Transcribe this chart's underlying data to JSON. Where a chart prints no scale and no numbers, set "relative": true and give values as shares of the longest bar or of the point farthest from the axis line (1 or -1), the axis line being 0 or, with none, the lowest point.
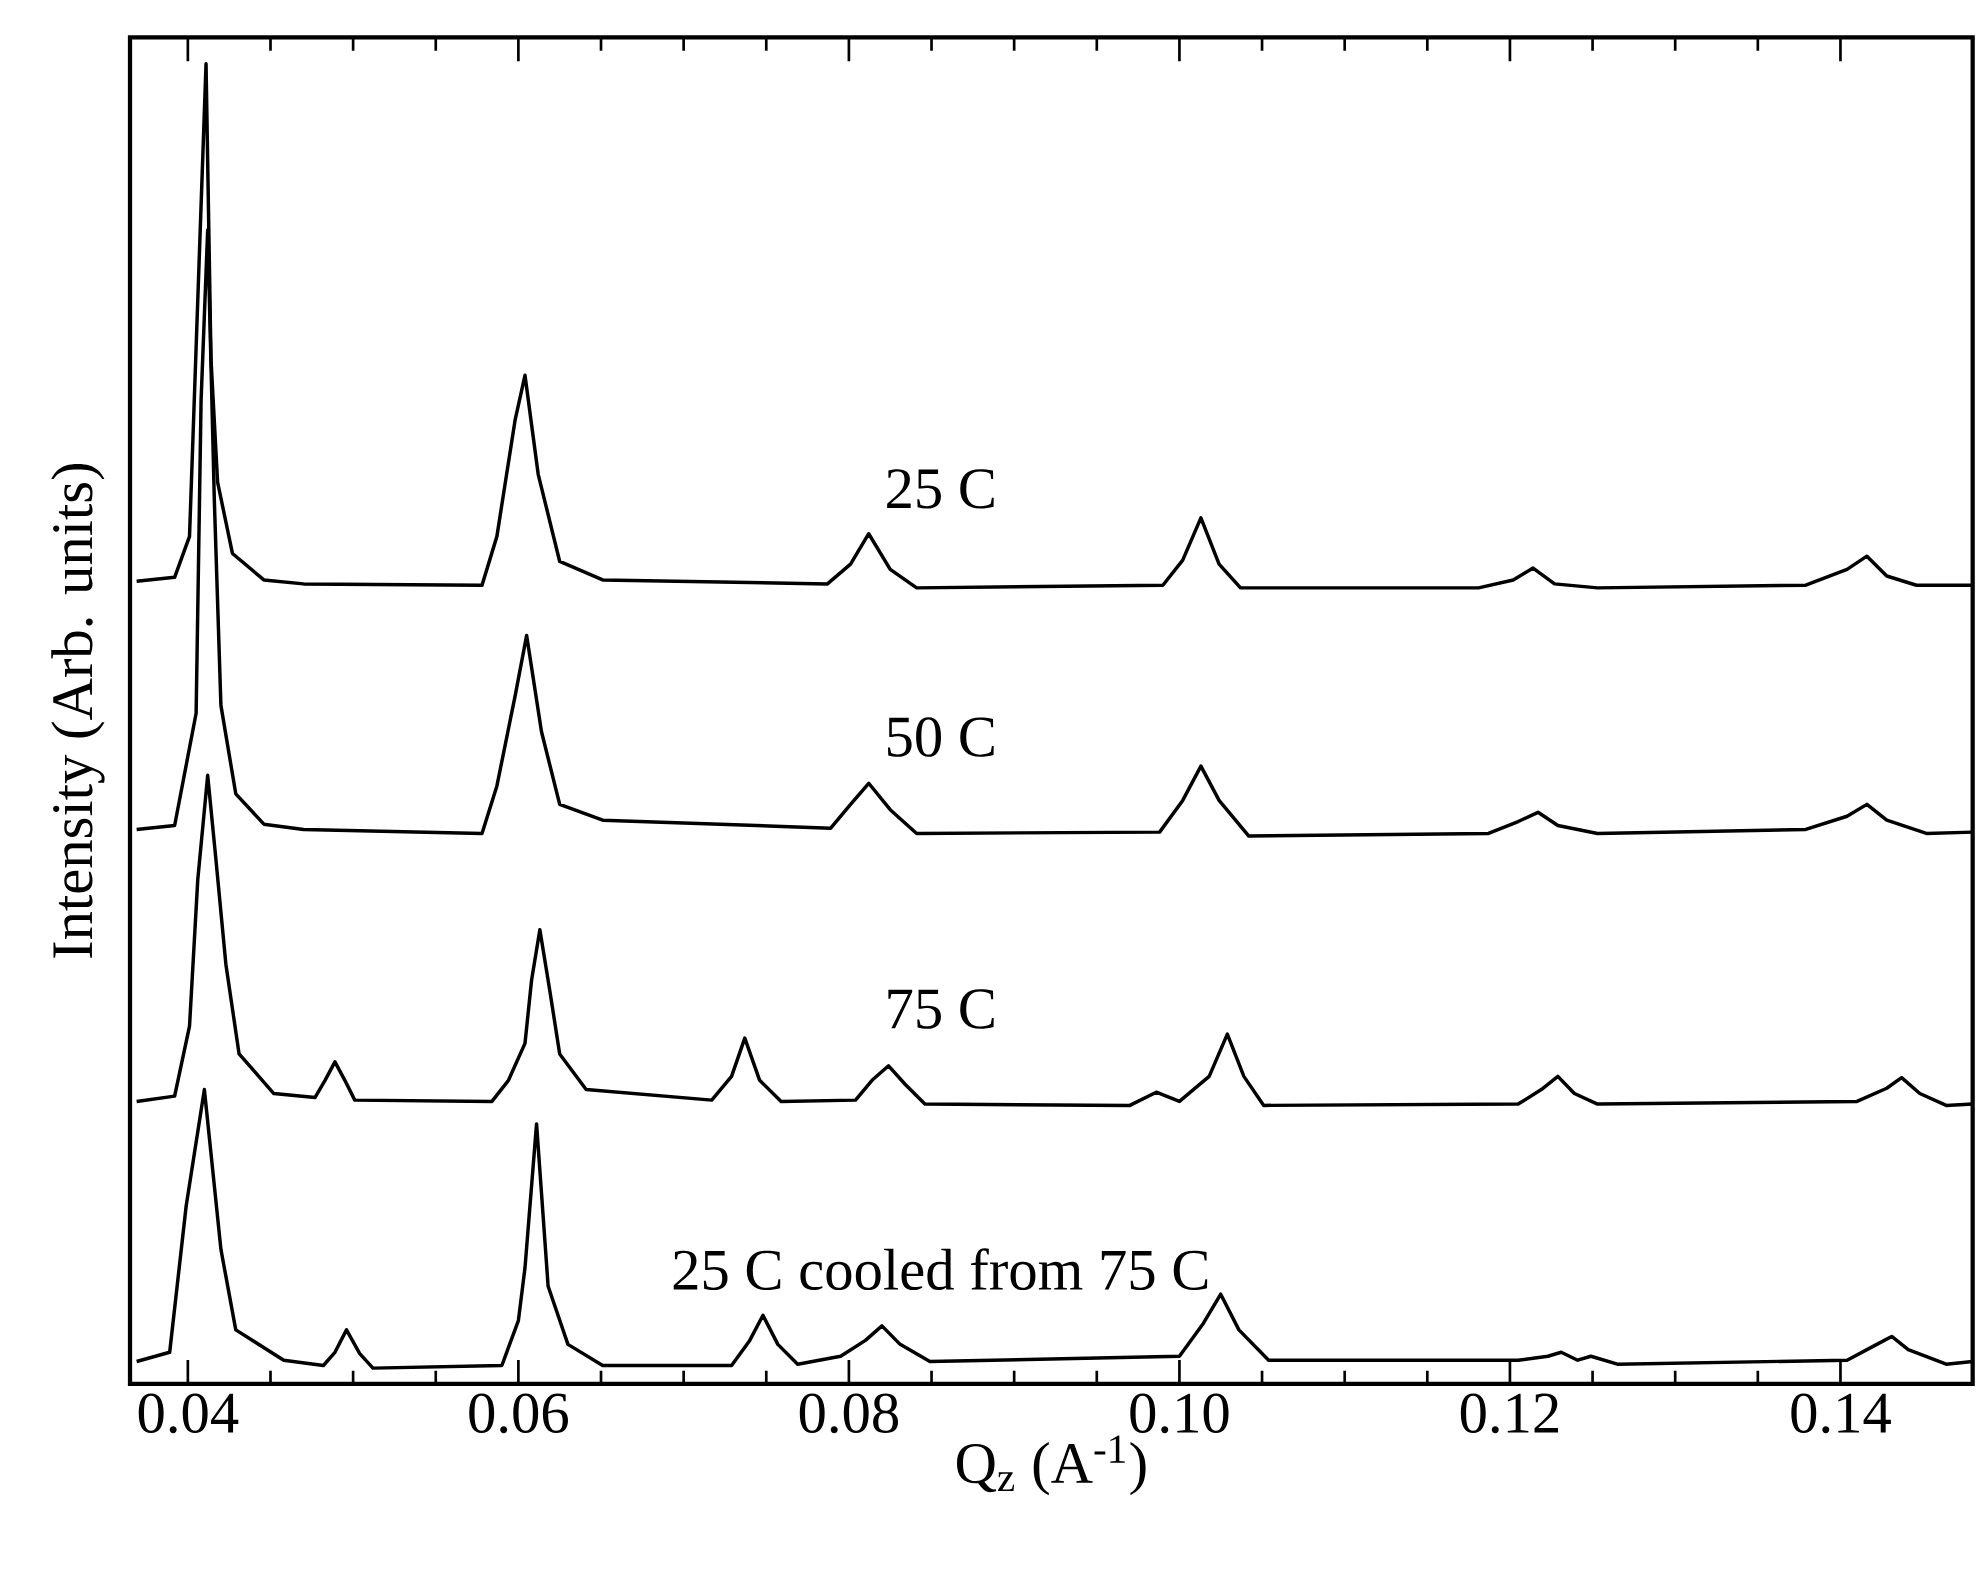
{
  "chart_data": {
    "type": "line",
    "relative": true,
    "xlabel": "Q$_{z}$ (A$^{-1}$)",
    "ylabel": "Intensity (Arb. units)",
    "xlim": [
      0.0365,
      0.148
    ],
    "xticks": [
      {
        "value": 0.04,
        "label": "0.04"
      },
      {
        "value": 0.06,
        "label": "0.06"
      },
      {
        "value": 0.08,
        "label": "0.08"
      },
      {
        "value": 0.1,
        "label": "0.10"
      },
      {
        "value": 0.12,
        "label": "0.12"
      },
      {
        "value": 0.14,
        "label": "0.14"
      }
    ],
    "legend": false,
    "marker": "none",
    "line_style": "solid",
    "series": [
      {
        "name": "25 C",
        "color": "#000000",
        "x": [
          0.0369,
          0.0392,
          0.0401,
          0.0406,
          0.0411,
          0.0414,
          0.0418,
          0.0427,
          0.0446,
          0.047,
          0.0578,
          0.0587,
          0.0598,
          0.0604,
          0.0612,
          0.0625,
          0.0651,
          0.0787,
          0.0801,
          0.0812,
          0.0825,
          0.0841,
          0.099,
          0.1002,
          0.1013,
          0.1024,
          0.1037,
          0.1181,
          0.1202,
          0.1214,
          0.1227,
          0.1253,
          0.1379,
          0.1404,
          0.1416,
          0.1428,
          0.1446,
          0.148
        ],
        "values": [
          0.608,
          0.611,
          0.642,
          0.821,
          1.0,
          0.776,
          0.683,
          0.629,
          0.609,
          0.606,
          0.605,
          0.642,
          0.73,
          0.764,
          0.689,
          0.623,
          0.609,
          0.606,
          0.621,
          0.644,
          0.617,
          0.603,
          0.605,
          0.624,
          0.656,
          0.621,
          0.603,
          0.603,
          0.609,
          0.618,
          0.606,
          0.603,
          0.605,
          0.617,
          0.627,
          0.612,
          0.605,
          0.605
        ]
      },
      {
        "name": "50 C",
        "color": "#000000",
        "x": [
          0.0369,
          0.0392,
          0.0405,
          0.0408,
          0.0412,
          0.0416,
          0.042,
          0.0429,
          0.0446,
          0.047,
          0.0578,
          0.0587,
          0.0598,
          0.0605,
          0.0614,
          0.0625,
          0.0651,
          0.0789,
          0.0801,
          0.0812,
          0.0825,
          0.0841,
          0.0988,
          0.1002,
          0.1013,
          0.1024,
          0.1042,
          0.1187,
          0.1205,
          0.1217,
          0.1229,
          0.1253,
          0.1379,
          0.1404,
          0.1416,
          0.1428,
          0.1452,
          0.148
        ],
        "values": [
          0.42,
          0.423,
          0.508,
          0.745,
          0.874,
          0.67,
          0.514,
          0.447,
          0.424,
          0.42,
          0.417,
          0.453,
          0.521,
          0.567,
          0.494,
          0.439,
          0.427,
          0.421,
          0.439,
          0.455,
          0.435,
          0.417,
          0.418,
          0.442,
          0.468,
          0.442,
          0.415,
          0.417,
          0.426,
          0.433,
          0.423,
          0.417,
          0.42,
          0.43,
          0.439,
          0.427,
          0.417,
          0.418
        ]
      },
      {
        "name": "75 C",
        "color": "#000000",
        "x": [
          0.0369,
          0.0392,
          0.0401,
          0.0406,
          0.0412,
          0.0417,
          0.0423,
          0.0431,
          0.0452,
          0.0477,
          0.0483,
          0.0489,
          0.0495,
          0.0501,
          0.0584,
          0.0594,
          0.0604,
          0.0608,
          0.0613,
          0.0619,
          0.0625,
          0.0641,
          0.0717,
          0.0729,
          0.0737,
          0.0746,
          0.0759,
          0.0804,
          0.0814,
          0.0824,
          0.0834,
          0.0846,
          0.097,
          0.0986,
          0.1,
          0.1018,
          0.1029,
          0.1039,
          0.1051,
          0.1205,
          0.1219,
          0.1229,
          0.1239,
          0.1253,
          0.141,
          0.1428,
          0.1437,
          0.1448,
          0.1464,
          0.148
        ],
        "values": [
          0.214,
          0.218,
          0.271,
          0.382,
          0.461,
          0.397,
          0.318,
          0.25,
          0.22,
          0.217,
          0.23,
          0.244,
          0.23,
          0.215,
          0.214,
          0.23,
          0.258,
          0.306,
          0.344,
          0.298,
          0.25,
          0.223,
          0.215,
          0.233,
          0.262,
          0.23,
          0.214,
          0.215,
          0.23,
          0.241,
          0.227,
          0.212,
          0.211,
          0.221,
          0.214,
          0.233,
          0.265,
          0.233,
          0.211,
          0.212,
          0.223,
          0.233,
          0.22,
          0.212,
          0.214,
          0.224,
          0.232,
          0.22,
          0.211,
          0.212
        ]
      },
      {
        "name": "25 C cooled from 75 C",
        "color": "#000000",
        "x": [
          0.0369,
          0.0389,
          0.0399,
          0.041,
          0.042,
          0.0429,
          0.0458,
          0.0482,
          0.0489,
          0.0496,
          0.0504,
          0.0512,
          0.059,
          0.06,
          0.0604,
          0.0611,
          0.0618,
          0.063,
          0.0651,
          0.0729,
          0.074,
          0.0748,
          0.0757,
          0.0769,
          0.0795,
          0.081,
          0.082,
          0.0831,
          0.0849,
          0.1,
          0.1014,
          0.1025,
          0.1036,
          0.1054,
          0.1205,
          0.1223,
          0.1231,
          0.1241,
          0.1249,
          0.1265,
          0.1404,
          0.1422,
          0.1431,
          0.1441,
          0.1464,
          0.148
        ],
        "values": [
          0.017,
          0.024,
          0.135,
          0.223,
          0.102,
          0.041,
          0.018,
          0.014,
          0.024,
          0.041,
          0.023,
          0.012,
          0.014,
          0.048,
          0.088,
          0.197,
          0.074,
          0.03,
          0.014,
          0.014,
          0.033,
          0.052,
          0.03,
          0.015,
          0.021,
          0.033,
          0.044,
          0.03,
          0.017,
          0.021,
          0.045,
          0.068,
          0.041,
          0.018,
          0.018,
          0.021,
          0.024,
          0.018,
          0.021,
          0.015,
          0.018,
          0.03,
          0.036,
          0.026,
          0.015,
          0.017
        ]
      }
    ]
  }
}
